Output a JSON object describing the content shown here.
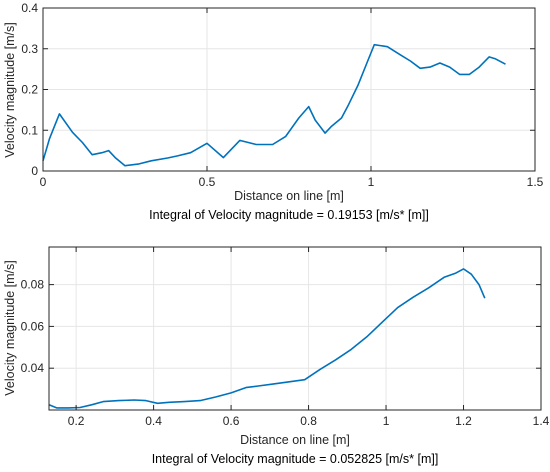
{
  "chart_data": [
    {
      "type": "line",
      "xlabel": "Distance on line [m]",
      "ylabel": "Velocity magnitude [m/s]",
      "note": "Integral of Velocity magnitude  = 0.19153 [m/s* [m]]",
      "xlim": [
        0,
        1.5
      ],
      "ylim": [
        0,
        0.4
      ],
      "xticks": [
        0,
        0.5,
        1,
        1.5
      ],
      "xtick_labels": [
        "0",
        "0.5",
        "1",
        "1.5"
      ],
      "yticks": [
        0,
        0.1,
        0.2,
        0.3,
        0.4
      ],
      "ytick_labels": [
        "0",
        "0.1",
        "0.2",
        "0.3",
        "0.4"
      ],
      "grid": true,
      "series_color": "#0072BD",
      "x": [
        0,
        0.02,
        0.05,
        0.09,
        0.12,
        0.15,
        0.18,
        0.2,
        0.22,
        0.25,
        0.29,
        0.33,
        0.38,
        0.41,
        0.45,
        0.5,
        0.55,
        0.6,
        0.65,
        0.7,
        0.74,
        0.78,
        0.81,
        0.83,
        0.86,
        0.88,
        0.91,
        0.93,
        0.96,
        0.99,
        1.01,
        1.05,
        1.09,
        1.12,
        1.15,
        1.18,
        1.21,
        1.24,
        1.27,
        1.3,
        1.33,
        1.36,
        1.38,
        1.41
      ],
      "y": [
        0.025,
        0.08,
        0.14,
        0.095,
        0.07,
        0.04,
        0.045,
        0.05,
        0.033,
        0.013,
        0.017,
        0.025,
        0.032,
        0.037,
        0.045,
        0.068,
        0.033,
        0.075,
        0.065,
        0.065,
        0.085,
        0.13,
        0.158,
        0.125,
        0.093,
        0.11,
        0.13,
        0.16,
        0.21,
        0.27,
        0.31,
        0.305,
        0.285,
        0.27,
        0.252,
        0.255,
        0.265,
        0.255,
        0.237,
        0.237,
        0.255,
        0.28,
        0.275,
        0.262
      ]
    },
    {
      "type": "line",
      "xlabel": "Distance on line [m]",
      "ylabel": "Velocity magnitude [m/s]",
      "note": "Integral of Velocity magnitude  = 0.052825 [m/s* [m]]",
      "xlim": [
        0.13,
        1.4
      ],
      "ylim": [
        0.02,
        0.098
      ],
      "xticks": [
        0.2,
        0.4,
        0.6,
        0.8,
        1,
        1.2,
        1.4
      ],
      "xtick_labels": [
        "0.2",
        "0.4",
        "0.6",
        "0.8",
        "1",
        "1.2",
        "1.4"
      ],
      "yticks": [
        0.04,
        0.06,
        0.08
      ],
      "ytick_labels": [
        "0.04",
        "0.06",
        "0.08"
      ],
      "grid": true,
      "series_color": "#0072BD",
      "x": [
        0.13,
        0.15,
        0.18,
        0.21,
        0.24,
        0.27,
        0.31,
        0.35,
        0.38,
        0.41,
        0.44,
        0.48,
        0.52,
        0.56,
        0.6,
        0.64,
        0.67,
        0.71,
        0.75,
        0.79,
        0.83,
        0.87,
        0.91,
        0.95,
        0.99,
        1.03,
        1.07,
        1.11,
        1.15,
        1.18,
        1.2,
        1.22,
        1.24,
        1.255
      ],
      "y": [
        0.0225,
        0.021,
        0.021,
        0.0212,
        0.0225,
        0.024,
        0.0245,
        0.0248,
        0.0245,
        0.0232,
        0.0237,
        0.024,
        0.0245,
        0.0262,
        0.0282,
        0.0308,
        0.0315,
        0.0325,
        0.0335,
        0.0345,
        0.0395,
        0.044,
        0.049,
        0.055,
        0.062,
        0.069,
        0.074,
        0.0785,
        0.0835,
        0.0855,
        0.0875,
        0.085,
        0.08,
        0.0735
      ]
    }
  ]
}
